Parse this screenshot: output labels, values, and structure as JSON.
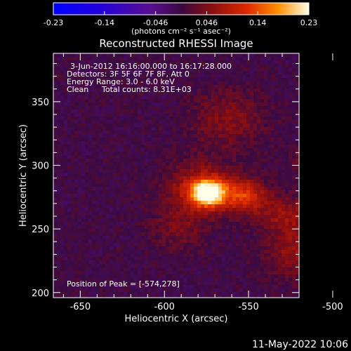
{
  "footer_date": "11-May-2022 10:06",
  "colors": {
    "background": "#000000",
    "axis": "#ffffff"
  },
  "chart_data": {
    "type": "heatmap",
    "title": "Reconstructed RHESSI Image",
    "xlabel": "Heliocentric X (arcsec)",
    "ylabel": "Heliocentric Y (arcsec)",
    "xlim": [
      -666,
      -520
    ],
    "ylim": [
      196,
      388
    ],
    "xticks": [
      "-650",
      "-600",
      "-550",
      "-500"
    ],
    "xtick_values": [
      -650,
      -600,
      -550,
      -500
    ],
    "yticks": [
      "200",
      "250",
      "300",
      "350"
    ],
    "ytick_values": [
      200,
      250,
      300,
      350
    ],
    "colorbar": {
      "tick_labels": [
        "-0.23",
        "-0.14",
        "-0.046",
        "0.046",
        "0.14",
        "0.23"
      ],
      "range": [
        -0.23,
        0.23
      ],
      "units": "(photons cm⁻² s⁻¹ asec⁻²)"
    },
    "annotations": [
      "3-Jun-2012 16:16:00.000 to 16:17:28.000",
      "Detectors: 3F 5F 6F 7F 8F, Att 0",
      "Energy Range: 3.0 - 6.0 keV",
      "Clean",
      "Total counts: 8.31E+03"
    ],
    "peak_label": "Position of Peak = [-574,278]",
    "peak": {
      "x": -574,
      "y": 278,
      "value": 0.23
    },
    "sources": [
      {
        "x": -574,
        "y": 278,
        "peak": 0.23,
        "sigma": 7
      },
      {
        "x": -578,
        "y": 282,
        "peak": 0.09,
        "sigma": 14
      },
      {
        "x": -552,
        "y": 276,
        "peak": 0.11,
        "sigma": 9
      },
      {
        "x": -508,
        "y": 303,
        "peak": 0.12,
        "sigma": 8
      },
      {
        "x": -506,
        "y": 260,
        "peak": 0.07,
        "sigma": 12
      },
      {
        "x": -522,
        "y": 232,
        "peak": 0.06,
        "sigma": 14
      },
      {
        "x": -562,
        "y": 336,
        "peak": 0.05,
        "sigma": 16
      },
      {
        "x": -532,
        "y": 262,
        "peak": 0.05,
        "sigma": 10
      },
      {
        "x": -592,
        "y": 250,
        "peak": 0.04,
        "sigma": 12
      }
    ]
  }
}
